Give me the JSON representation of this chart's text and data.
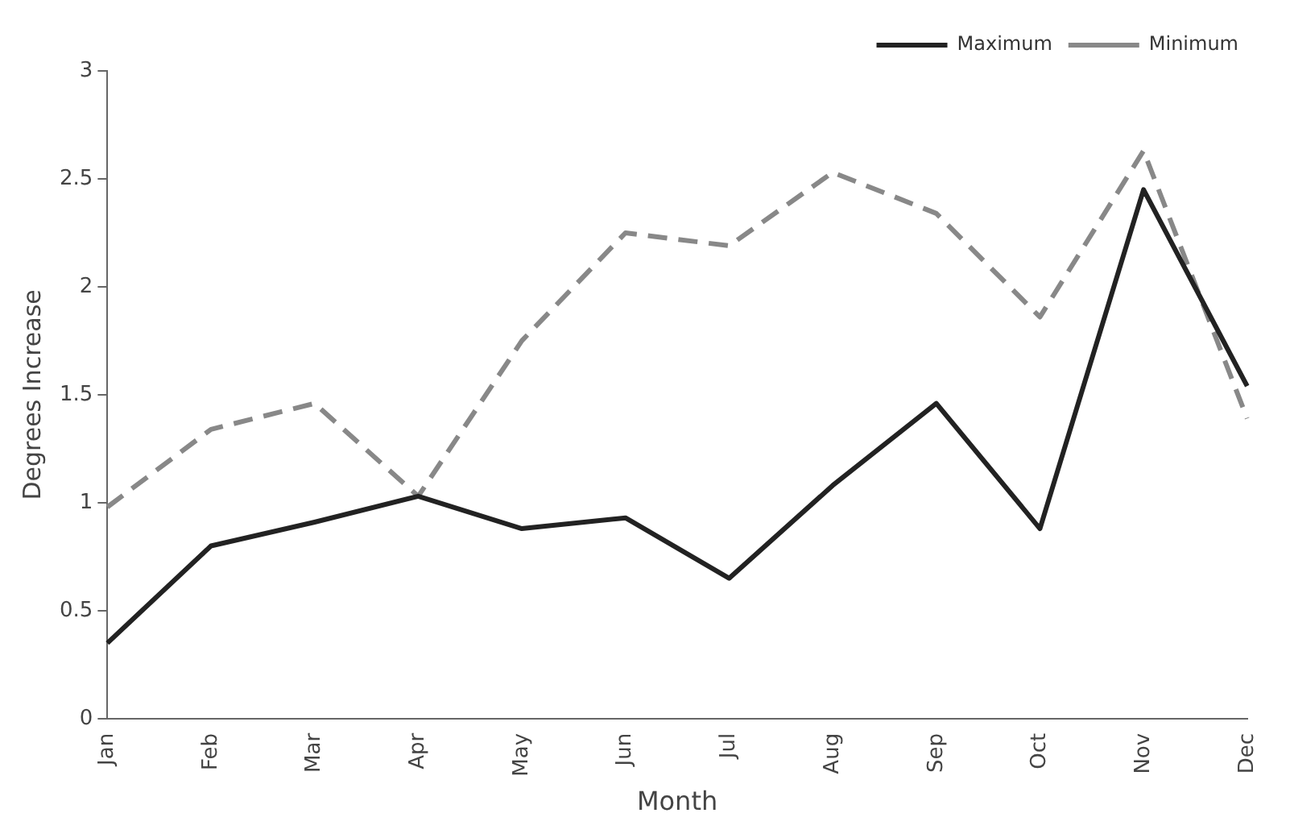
{
  "chart_data": {
    "type": "line",
    "xlabel": "Month",
    "ylabel": "Degrees Increase",
    "categories": [
      "Jan",
      "Feb",
      "Mar",
      "Apr",
      "May",
      "Jun",
      "Jul",
      "Aug",
      "Sep",
      "Oct",
      "Nov",
      "Dec"
    ],
    "series": [
      {
        "name": "Maximum",
        "color": "#222222",
        "line_style": "solid",
        "values": [
          0.35,
          0.8,
          0.91,
          1.03,
          0.88,
          0.93,
          0.65,
          1.08,
          1.46,
          0.88,
          2.45,
          1.54
        ]
      },
      {
        "name": "Minimum",
        "color": "#888888",
        "line_style": "dashed",
        "values": [
          0.98,
          1.34,
          1.46,
          1.03,
          1.75,
          2.25,
          2.19,
          2.53,
          2.34,
          1.86,
          2.63,
          1.39
        ]
      }
    ],
    "ylim": [
      0,
      3
    ],
    "yticks": [
      0,
      0.5,
      1,
      1.5,
      2,
      2.5,
      3
    ],
    "grid": false,
    "legend": "top right",
    "marker": "none"
  }
}
